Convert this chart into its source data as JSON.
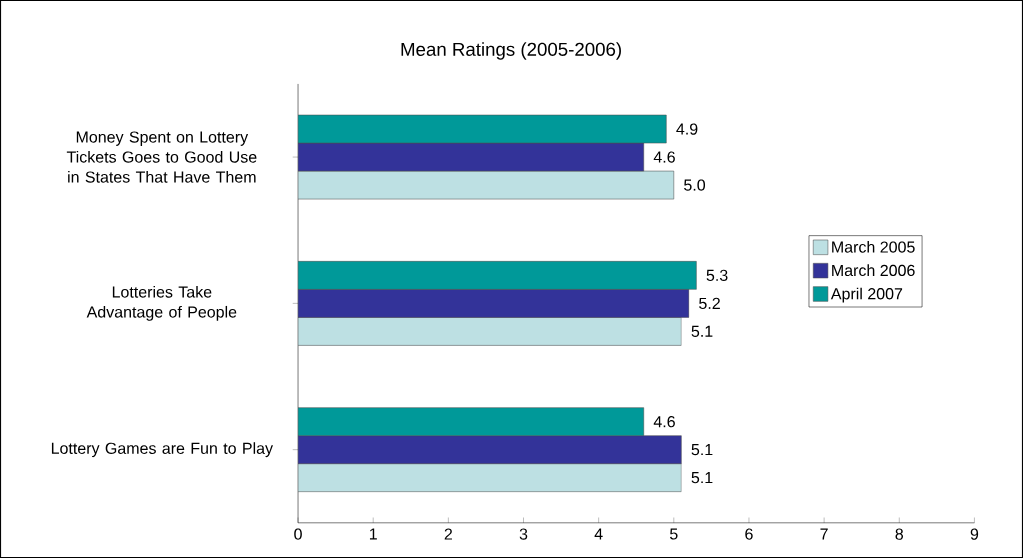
{
  "chart_data": {
    "type": "bar",
    "orientation": "horizontal",
    "title": "Mean Ratings (2005-2006)",
    "categories": [
      "Money Spent on Lottery Tickets Goes to Good Use in States That Have Them",
      "Lotteries Take Advantage of People",
      "Lottery Games are Fun to Play"
    ],
    "series": [
      {
        "name": "March 2005",
        "color": "#bde0e3",
        "values": [
          5.0,
          5.1,
          5.1
        ],
        "value_labels": [
          "5.0",
          "5.1",
          "5.1"
        ]
      },
      {
        "name": "March 2006",
        "color": "#333399",
        "values": [
          4.6,
          5.2,
          5.1
        ],
        "value_labels": [
          "4.6",
          "5.2",
          "5.1"
        ]
      },
      {
        "name": "April 2007",
        "color": "#009999",
        "values": [
          4.9,
          5.3,
          4.6
        ],
        "value_labels": [
          "4.9",
          "5.3",
          "4.6"
        ]
      }
    ],
    "xlim": [
      0,
      9
    ],
    "xticks": [
      0,
      1,
      2,
      3,
      4,
      5,
      6,
      7,
      8,
      9
    ],
    "grid": false,
    "legend": "right"
  }
}
